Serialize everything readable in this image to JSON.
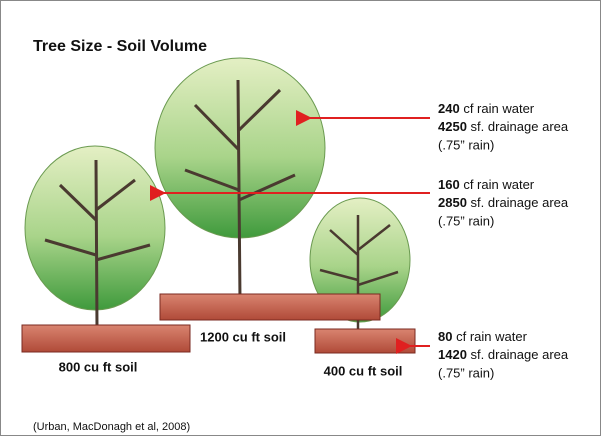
{
  "title": "Tree Size - Soil Volume",
  "annotations": [
    {
      "rain": 240,
      "rain_text": "cf rain water",
      "area": 4250,
      "area_text": "sf. drainage area",
      "note": "(.75” rain)"
    },
    {
      "rain": 160,
      "rain_text": "cf rain water",
      "area": 2850,
      "area_text": "sf. drainage area",
      "note": "(.75” rain)"
    },
    {
      "rain": 80,
      "rain_text": "cf rain water",
      "area": 1420,
      "area_text": "sf. drainage area",
      "note": "(.75” rain)"
    }
  ],
  "soil_labels": [
    "800 cu ft soil",
    "1200 cu ft soil",
    "400 cu ft soil"
  ],
  "citation": "(Urban, MacDonagh et al, 2008)"
}
